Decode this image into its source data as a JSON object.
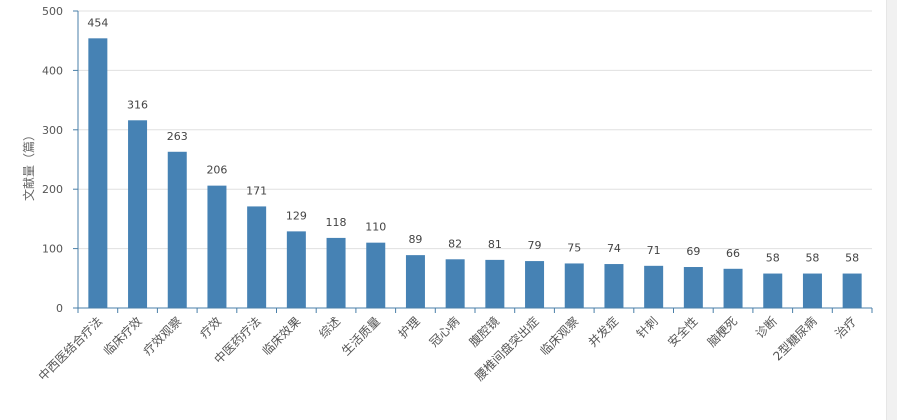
{
  "chart_data": {
    "type": "bar",
    "ylabel": "文献量（篇）",
    "ylim": [
      0,
      500
    ],
    "yticks": [
      0,
      100,
      200,
      300,
      400,
      500
    ],
    "grid": true,
    "bar_color": "#4682b4",
    "categories": [
      "中西医结合疗法",
      "临床疗效",
      "疗效观察",
      "疗效",
      "中医药疗法",
      "临床效果",
      "综述",
      "生活质量",
      "护理",
      "冠心病",
      "腹腔镜",
      "腰椎间盘突出症",
      "临床观察",
      "并发症",
      "针刺",
      "安全性",
      "脑梗死",
      "诊断",
      "2型糖尿病",
      "治疗"
    ],
    "values": [
      454,
      316,
      263,
      206,
      171,
      129,
      118,
      110,
      89,
      82,
      81,
      79,
      75,
      74,
      71,
      69,
      66,
      58,
      58,
      58
    ]
  }
}
